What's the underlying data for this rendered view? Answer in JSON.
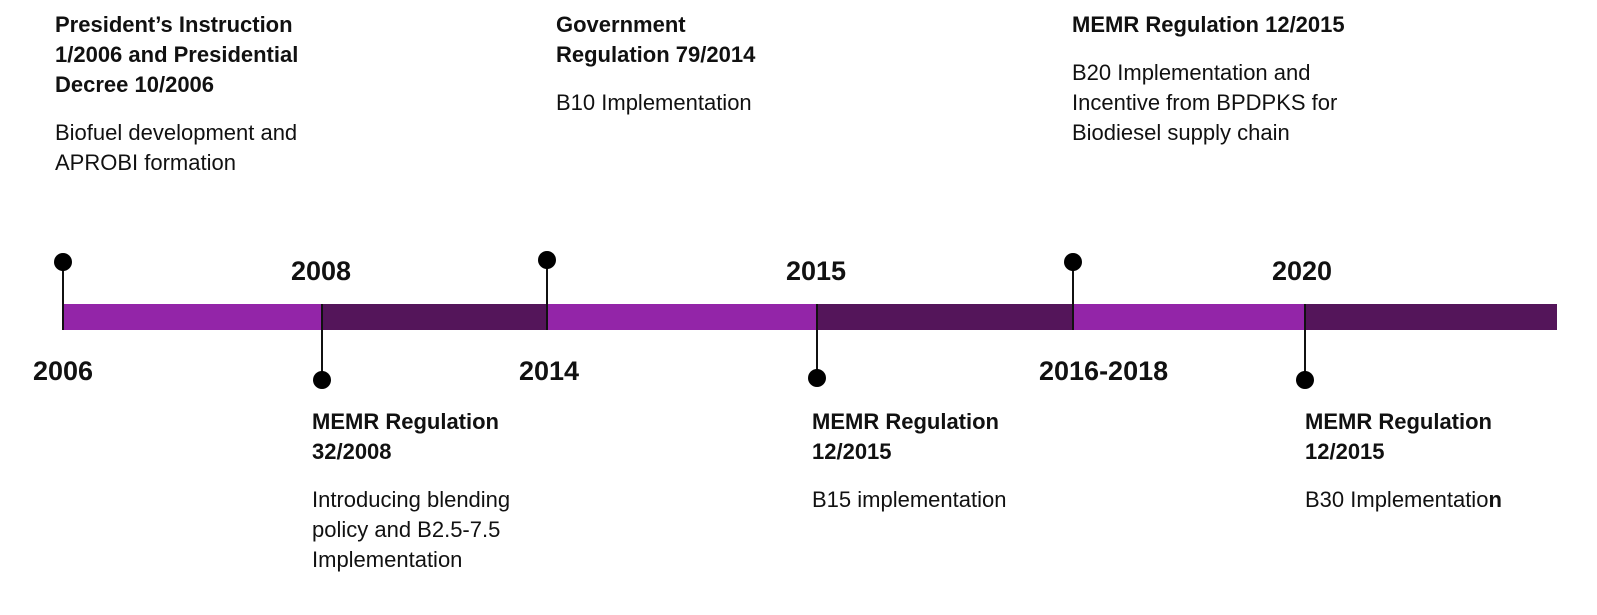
{
  "colors": {
    "light": "#9325A8",
    "dark": "#54155A",
    "stem": "#111111"
  },
  "milestones": [
    {
      "year": "2006",
      "side": "above",
      "title": "President’s Instruction 1/2006 and Presidential Decree 10/2006",
      "desc": "Biofuel development and APROBI formation"
    },
    {
      "year": "2008",
      "side": "below",
      "title": "MEMR Regulation 32/2008",
      "desc": "Introducing blending policy and B2.5-7.5 Implementation"
    },
    {
      "year": "2014",
      "side": "above",
      "title": "Government Regulation 79/2014",
      "desc": "B10 Implementation"
    },
    {
      "year": "2015",
      "side": "below",
      "title": "MEMR Regulation 12/2015",
      "desc": "B15 implementation"
    },
    {
      "year": "2016-2018",
      "side": "above",
      "title": "MEMR Regulation 12/2015",
      "desc": "B20 Implementation and Incentive from BPDPKS for Biodiesel supply chain"
    },
    {
      "year": "2020",
      "side": "below",
      "title": "MEMR Regulation 12/2015",
      "desc": "B30 Implementatio",
      "desc_bold_tail": "n"
    }
  ]
}
